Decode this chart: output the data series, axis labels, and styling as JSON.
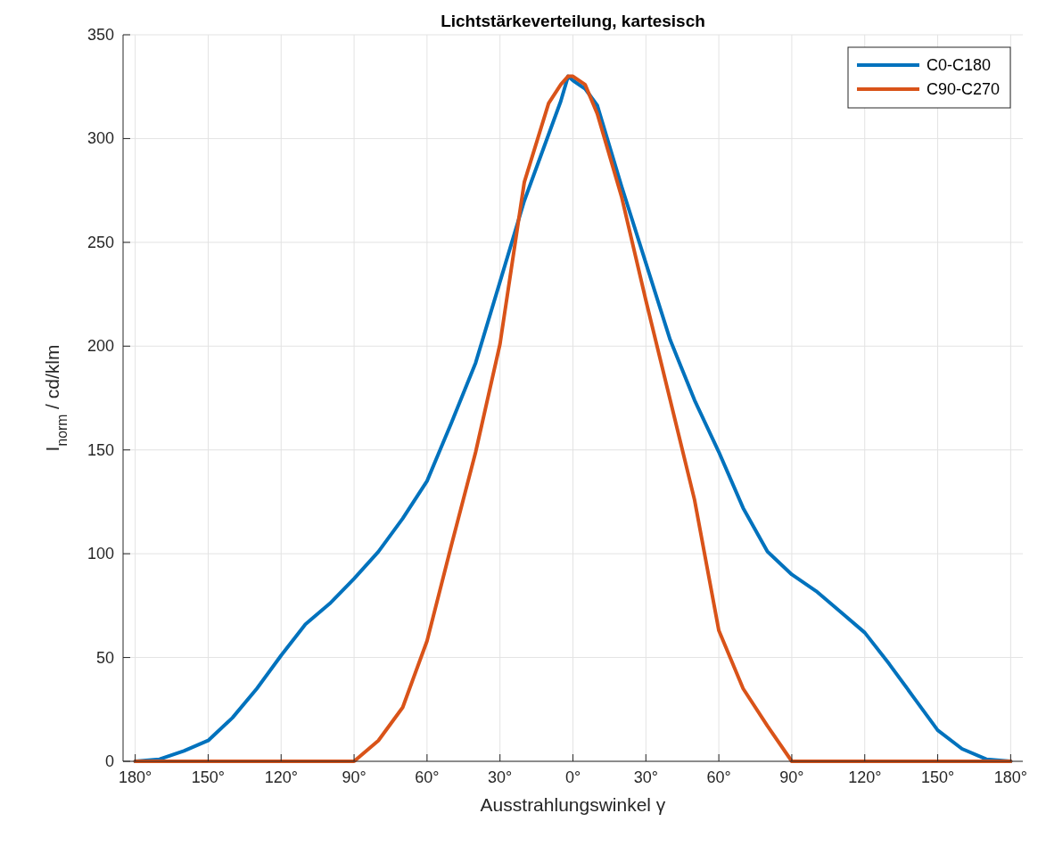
{
  "chart_data": {
    "type": "line",
    "title": "Lichtstärkeverteilung, kartesisch",
    "xlabel": "Ausstrahlungswinkel γ",
    "ylabel": "I$_{norm}$ / cd/klm",
    "x": [
      -180,
      -170,
      -160,
      -150,
      -140,
      -130,
      -120,
      -110,
      -100,
      -90,
      -80,
      -70,
      -60,
      -50,
      -40,
      -30,
      -20,
      -10,
      -5,
      -2,
      0,
      5,
      10,
      20,
      30,
      40,
      50,
      60,
      70,
      80,
      90,
      100,
      110,
      120,
      130,
      140,
      150,
      160,
      170,
      180
    ],
    "series": [
      {
        "name": "C0-C180",
        "color": "#0072bd",
        "values": [
          0,
          1,
          5,
          10,
          21,
          35,
          51,
          66,
          76,
          88,
          101,
          117,
          135,
          163,
          192,
          231,
          270,
          302,
          318,
          330,
          328,
          324,
          316,
          277,
          240,
          203,
          174,
          149,
          122,
          101,
          90,
          82,
          72,
          62,
          47,
          31,
          15,
          6,
          1,
          0
        ]
      },
      {
        "name": "C90-C270",
        "color": "#d95319",
        "values": [
          0,
          0,
          0,
          0,
          0,
          0,
          0,
          0,
          0,
          0,
          10,
          26,
          58,
          104,
          149,
          201,
          279,
          317,
          326,
          330,
          330,
          326,
          312,
          272,
          222,
          174,
          126,
          63,
          35,
          17,
          0,
          0,
          0,
          0,
          0,
          0,
          0,
          0,
          0,
          0
        ]
      }
    ],
    "xlim": [
      -185,
      185
    ],
    "xticks": [
      {
        "value": -180,
        "label": "180°"
      },
      {
        "value": -150,
        "label": "150°"
      },
      {
        "value": -120,
        "label": "120°"
      },
      {
        "value": -90,
        "label": "90°"
      },
      {
        "value": -60,
        "label": "60°"
      },
      {
        "value": -30,
        "label": "30°"
      },
      {
        "value": 0,
        "label": "0°"
      },
      {
        "value": 30,
        "label": "30°"
      },
      {
        "value": 60,
        "label": "60°"
      },
      {
        "value": 90,
        "label": "90°"
      },
      {
        "value": 120,
        "label": "120°"
      },
      {
        "value": 150,
        "label": "150°"
      },
      {
        "value": 180,
        "label": "180°"
      }
    ],
    "ylim": [
      0,
      350
    ],
    "yticks": [
      0,
      50,
      100,
      150,
      200,
      250,
      300,
      350
    ],
    "grid": true,
    "legend": "top right",
    "line_style": "solid",
    "marker": "none"
  }
}
